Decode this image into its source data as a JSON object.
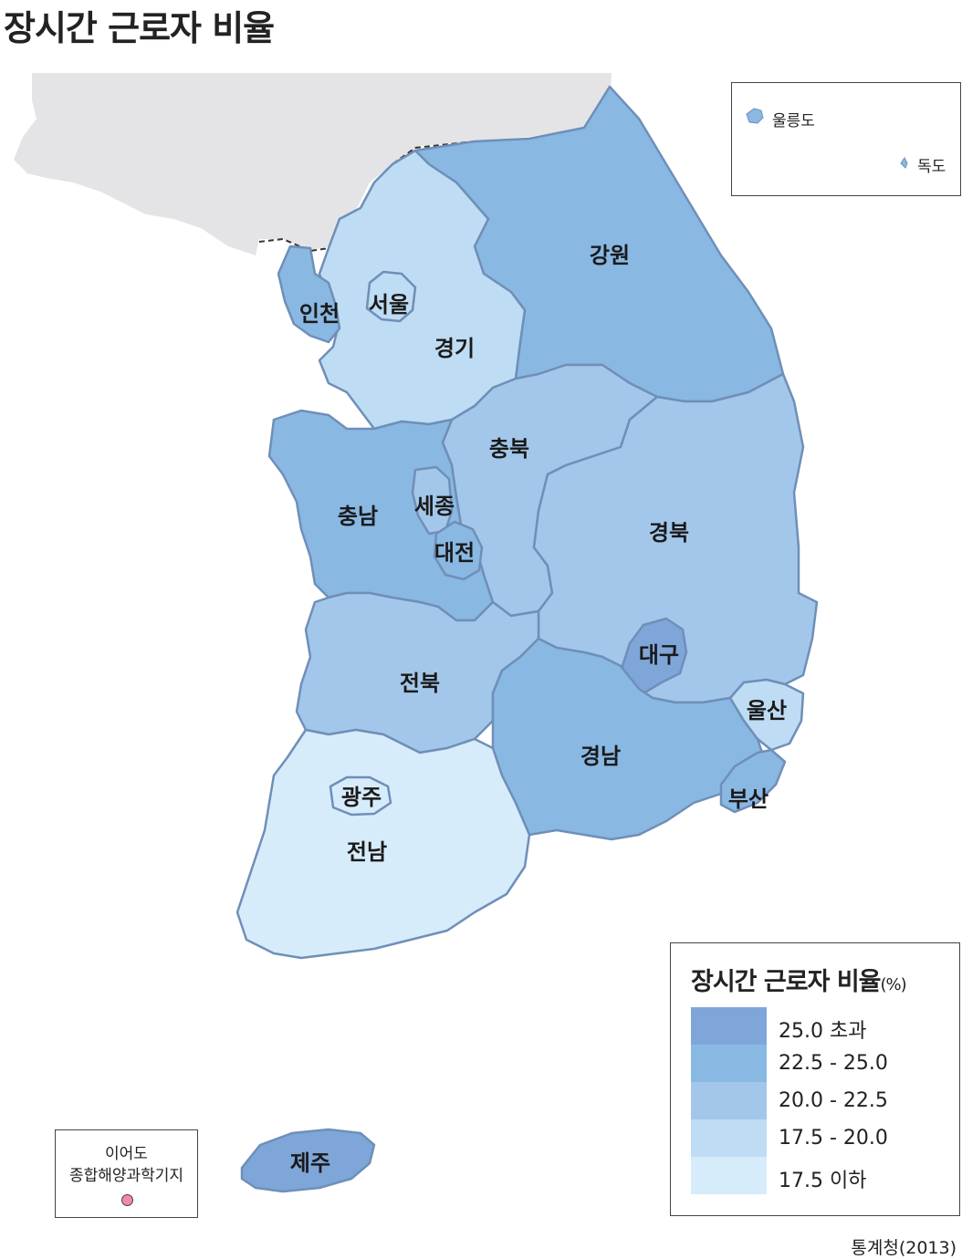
{
  "title": "장시간 근로자 비율",
  "colors": {
    "over_25": "#7ea6d9",
    "c22_5_25": "#89b8e3",
    "c20_22_5": "#a3c7ea",
    "c17_5_20": "#bedcf3",
    "under_17_5": "#d7ecfa",
    "north": "#e4e4e6",
    "border": "#6f8fb8",
    "ieodo_dot": "#f08aa8"
  },
  "regions": [
    {
      "name": "서울",
      "class": "c17_5_20"
    },
    {
      "name": "인천",
      "class": "c22_5_25"
    },
    {
      "name": "경기",
      "class": "c17_5_20"
    },
    {
      "name": "강원",
      "class": "c22_5_25"
    },
    {
      "name": "충북",
      "class": "c20_22_5"
    },
    {
      "name": "충남",
      "class": "c22_5_25"
    },
    {
      "name": "세종",
      "class": "c20_22_5"
    },
    {
      "name": "대전",
      "class": "c22_5_25"
    },
    {
      "name": "경북",
      "class": "c20_22_5"
    },
    {
      "name": "대구",
      "class": "over_25"
    },
    {
      "name": "전북",
      "class": "c20_22_5"
    },
    {
      "name": "울산",
      "class": "c17_5_20"
    },
    {
      "name": "경남",
      "class": "c22_5_25"
    },
    {
      "name": "부산",
      "class": "c22_5_25"
    },
    {
      "name": "광주",
      "class": "under_17_5"
    },
    {
      "name": "전남",
      "class": "under_17_5"
    },
    {
      "name": "제주",
      "class": "over_25"
    }
  ],
  "inset": {
    "ulleungdo": "울릉도",
    "dokdo": "독도"
  },
  "legend": {
    "title": "장시간 근로자 비율",
    "unit": "(%)",
    "items": [
      {
        "label": "25.0 초과",
        "color": "#7ea6d9"
      },
      {
        "label": "22.5 - 25.0",
        "color": "#89b8e3"
      },
      {
        "label": "20.0 - 22.5",
        "color": "#a3c7ea"
      },
      {
        "label": "17.5 - 20.0",
        "color": "#bedcf3"
      },
      {
        "label": "17.5 이하",
        "color": "#d7ecfa"
      }
    ]
  },
  "ieodo": {
    "line1": "이어도",
    "line2": "종합해양과학기지"
  },
  "source": "통계청(2013)"
}
